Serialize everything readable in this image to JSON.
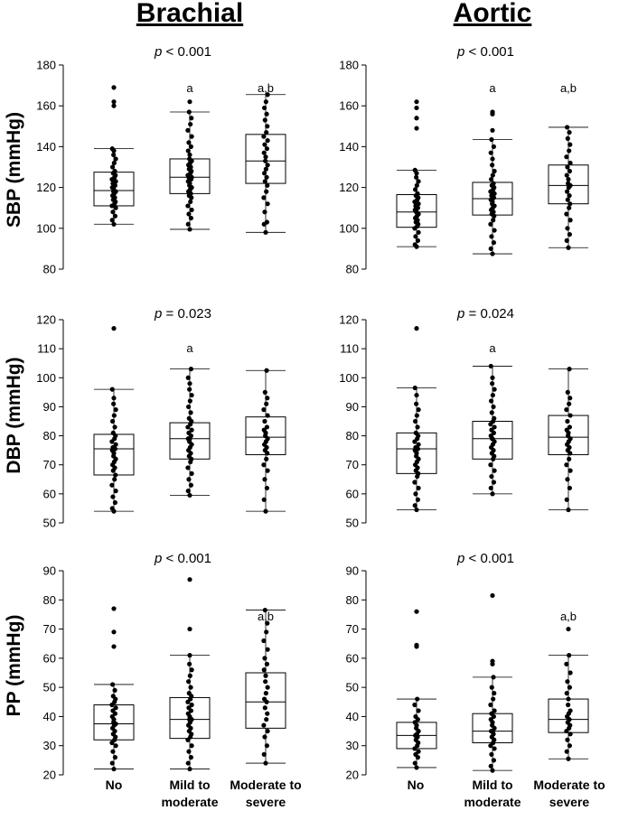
{
  "column_titles": [
    "Brachial",
    "Aortic"
  ],
  "row_labels": [
    "SBP (mmHg)",
    "DBP (mmHg)",
    "PP (mmHg)"
  ],
  "categories": [
    [
      "No"
    ],
    [
      "Mild to",
      "moderate"
    ],
    [
      "Moderate to",
      "severe"
    ]
  ],
  "chart_data": [
    {
      "type": "box",
      "id": "brachial-sbp",
      "title": "Brachial",
      "ylabel": "SBP (mmHg)",
      "p_prefix": "p",
      "p_text": " < 0.001",
      "ylim": [
        80,
        180
      ],
      "yticks": [
        80,
        100,
        120,
        140,
        160,
        180
      ],
      "groups": [
        {
          "name": "No",
          "min": 102,
          "q1": 111,
          "median": 118.5,
          "q3": 127.5,
          "max": 139,
          "sig": "",
          "outliers": [
            169,
            162,
            160
          ],
          "points": [
            102,
            104,
            106,
            108,
            110,
            111,
            112,
            113,
            114,
            115,
            116,
            117,
            118,
            118,
            119,
            120,
            121,
            122,
            123,
            124,
            125,
            126,
            127,
            128,
            130,
            132,
            134,
            136,
            138,
            139
          ]
        },
        {
          "name": "Mild to moderate",
          "min": 99.5,
          "q1": 117,
          "median": 125,
          "q3": 134,
          "max": 157,
          "sig": "a",
          "outliers": [
            162
          ],
          "points": [
            99.5,
            102,
            105,
            107,
            109,
            111,
            113,
            115,
            116,
            117,
            118,
            119,
            120,
            121,
            122,
            123,
            124,
            125,
            125,
            126,
            127,
            128,
            129,
            130,
            131,
            132,
            133,
            134,
            136,
            138,
            140,
            142,
            145,
            148,
            151,
            154,
            157
          ]
        },
        {
          "name": "Moderate to severe",
          "min": 98,
          "q1": 122,
          "median": 133,
          "q3": 146,
          "max": 165.5,
          "sig": "a,b",
          "outliers": [],
          "points": [
            98,
            102,
            103,
            108,
            112,
            115,
            118,
            121,
            123,
            125,
            127,
            129,
            131,
            133,
            135,
            137,
            139,
            141,
            143,
            145,
            147,
            150,
            153,
            156,
            159,
            162,
            165.5
          ]
        }
      ]
    },
    {
      "type": "box",
      "id": "aortic-sbp",
      "title": "Aortic",
      "ylabel": "SBP (mmHg)",
      "p_prefix": "p",
      "p_text": " < 0.001",
      "ylim": [
        80,
        180
      ],
      "yticks": [
        80,
        100,
        120,
        140,
        160,
        180
      ],
      "groups": [
        {
          "name": "No",
          "min": 91,
          "q1": 100.5,
          "median": 108,
          "q3": 116.5,
          "max": 128.5,
          "sig": "",
          "outliers": [
            162,
            159,
            154,
            149
          ],
          "points": [
            91,
            92,
            94,
            96,
            98,
            100,
            101,
            102,
            103,
            104,
            105,
            106,
            107,
            108,
            108,
            109,
            110,
            111,
            112,
            113,
            114,
            115,
            116,
            117,
            119,
            121,
            123,
            125,
            127,
            128.5
          ]
        },
        {
          "name": "Mild to moderate",
          "min": 87.5,
          "q1": 106.5,
          "median": 114.5,
          "q3": 122.5,
          "max": 143.5,
          "sig": "a",
          "outliers": [
            157,
            156,
            148
          ],
          "points": [
            87.5,
            90,
            93,
            96,
            99,
            102,
            104,
            106,
            107,
            108,
            109,
            110,
            111,
            112,
            113,
            114,
            115,
            116,
            117,
            118,
            119,
            120,
            121,
            122,
            124,
            126,
            128,
            131,
            134,
            137,
            140,
            143.5
          ]
        },
        {
          "name": "Moderate to severe",
          "min": 90.5,
          "q1": 112,
          "median": 121,
          "q3": 131,
          "max": 149.5,
          "sig": "a,b",
          "outliers": [],
          "points": [
            90.5,
            94,
            97,
            100,
            104,
            107,
            110,
            112,
            114,
            116,
            118,
            120,
            121,
            122,
            124,
            126,
            128,
            130,
            132,
            135,
            138,
            141,
            144,
            147,
            149.5
          ]
        }
      ]
    },
    {
      "type": "box",
      "id": "brachial-dbp",
      "title": "Brachial",
      "ylabel": "DBP (mmHg)",
      "p_prefix": "p",
      "p_text": " = 0.023",
      "ylim": [
        50,
        120
      ],
      "yticks": [
        50,
        60,
        70,
        80,
        90,
        100,
        110,
        120
      ],
      "groups": [
        {
          "name": "No",
          "min": 54,
          "q1": 66.5,
          "median": 75.5,
          "q3": 80.5,
          "max": 96,
          "sig": "",
          "outliers": [
            117
          ],
          "points": [
            54,
            55,
            57,
            59,
            61,
            63,
            65,
            66.5,
            68,
            69,
            70,
            71,
            72,
            73,
            74,
            75,
            75.5,
            76,
            77,
            78,
            79,
            80,
            81,
            83,
            85,
            87,
            89,
            91,
            93,
            96
          ]
        },
        {
          "name": "Mild to moderate",
          "min": 59.5,
          "q1": 72,
          "median": 79,
          "q3": 84.5,
          "max": 103,
          "sig": "a",
          "outliers": [],
          "points": [
            59.5,
            61,
            63,
            65,
            67,
            69,
            71,
            72,
            73,
            74,
            75,
            76,
            77,
            78,
            79,
            79,
            80,
            81,
            82,
            83,
            84,
            85,
            86,
            88,
            90,
            92,
            94,
            96,
            98,
            100,
            103
          ]
        },
        {
          "name": "Moderate to severe",
          "min": 54,
          "q1": 73.5,
          "median": 79.5,
          "q3": 86.5,
          "max": 102.5,
          "sig": "",
          "outliers": [],
          "points": [
            54,
            58,
            62,
            65,
            68,
            70,
            72,
            74,
            75,
            76,
            77,
            78,
            79,
            80,
            81,
            82,
            83,
            85,
            87,
            89,
            91,
            93,
            95,
            102.5
          ]
        }
      ]
    },
    {
      "type": "box",
      "id": "aortic-dbp",
      "title": "Aortic",
      "ylabel": "DBP (mmHg)",
      "p_prefix": "p",
      "p_text": " = 0.024",
      "ylim": [
        50,
        120
      ],
      "yticks": [
        50,
        60,
        70,
        80,
        90,
        100,
        110,
        120
      ],
      "groups": [
        {
          "name": "No",
          "min": 54.5,
          "q1": 67,
          "median": 75.5,
          "q3": 81,
          "max": 96.5,
          "sig": "",
          "outliers": [
            117
          ],
          "points": [
            54.5,
            56,
            58,
            60,
            62,
            64,
            66,
            67,
            68,
            69,
            70,
            71,
            72,
            73,
            74,
            75,
            75.5,
            76,
            77,
            78,
            79,
            80,
            81,
            83,
            85,
            87,
            89,
            91,
            94,
            96.5
          ]
        },
        {
          "name": "Mild to moderate",
          "min": 60,
          "q1": 72,
          "median": 79,
          "q3": 85,
          "max": 104,
          "sig": "a",
          "outliers": [],
          "points": [
            60,
            62,
            64,
            66,
            68,
            70,
            72,
            73,
            74,
            75,
            76,
            77,
            78,
            79,
            79,
            80,
            81,
            82,
            83,
            84,
            85,
            86,
            88,
            90,
            92,
            94,
            96,
            98,
            100,
            104
          ]
        },
        {
          "name": "Moderate to severe",
          "min": 54.5,
          "q1": 73.5,
          "median": 79.5,
          "q3": 87,
          "max": 103,
          "sig": "",
          "outliers": [],
          "points": [
            54.5,
            58,
            62,
            65,
            68,
            70,
            72,
            74,
            75,
            76,
            77,
            78,
            79,
            80,
            81,
            82,
            83,
            85,
            87,
            89,
            91,
            93,
            95,
            103
          ]
        }
      ]
    },
    {
      "type": "box",
      "id": "brachial-pp",
      "title": "Brachial",
      "ylabel": "PP (mmHg)",
      "p_prefix": "p",
      "p_text": " < 0.001",
      "ylim": [
        20,
        90
      ],
      "yticks": [
        20,
        30,
        40,
        50,
        60,
        70,
        80,
        90
      ],
      "groups": [
        {
          "name": "No",
          "min": 22,
          "q1": 32,
          "median": 37.5,
          "q3": 44,
          "max": 51,
          "sig": "",
          "outliers": [
            77,
            69,
            64
          ],
          "points": [
            22,
            24,
            26,
            28,
            30,
            31,
            32,
            33,
            34,
            35,
            36,
            37,
            37.5,
            38,
            39,
            40,
            41,
            42,
            43,
            44,
            45,
            46,
            47,
            49,
            51
          ]
        },
        {
          "name": "Mild to moderate",
          "min": 22,
          "q1": 32.5,
          "median": 39,
          "q3": 46.5,
          "max": 61,
          "sig": "",
          "outliers": [
            87,
            70
          ],
          "points": [
            22,
            24,
            26,
            28,
            30,
            32,
            33,
            34,
            35,
            36,
            37,
            38,
            39,
            39,
            40,
            41,
            42,
            43,
            44,
            45,
            46,
            47,
            48,
            50,
            52,
            54,
            56,
            58,
            61
          ]
        },
        {
          "name": "Moderate to severe",
          "min": 24,
          "q1": 36,
          "median": 45,
          "q3": 55,
          "max": 76.5,
          "sig": "a,b",
          "outliers": [],
          "points": [
            24,
            27,
            30,
            33,
            35,
            37,
            39,
            41,
            43,
            45,
            46,
            48,
            50,
            52,
            54,
            56,
            58,
            60,
            63,
            66,
            69,
            72,
            76.5
          ]
        }
      ]
    },
    {
      "type": "box",
      "id": "aortic-pp",
      "title": "Aortic",
      "ylabel": "PP (mmHg)",
      "p_prefix": "p",
      "p_text": " < 0.001",
      "ylim": [
        20,
        90
      ],
      "yticks": [
        20,
        30,
        40,
        50,
        60,
        70,
        80,
        90
      ],
      "groups": [
        {
          "name": "No",
          "min": 22.5,
          "q1": 29,
          "median": 33.5,
          "q3": 38,
          "max": 46,
          "sig": "",
          "outliers": [
            76,
            64.5,
            64
          ],
          "points": [
            22.5,
            24,
            26,
            27,
            28,
            29,
            30,
            31,
            32,
            33,
            33.5,
            34,
            35,
            36,
            37,
            38,
            39,
            40,
            42,
            44,
            46
          ]
        },
        {
          "name": "Mild to moderate",
          "min": 21.5,
          "q1": 31,
          "median": 35,
          "q3": 41,
          "max": 53.5,
          "sig": "",
          "outliers": [
            81.5,
            59,
            58
          ],
          "points": [
            21.5,
            23,
            25,
            27,
            29,
            30,
            31,
            32,
            33,
            34,
            35,
            35,
            36,
            37,
            38,
            39,
            40,
            41,
            42,
            44,
            46,
            48,
            50,
            53.5
          ]
        },
        {
          "name": "Moderate to severe",
          "min": 25.5,
          "q1": 34.5,
          "median": 39,
          "q3": 46,
          "max": 61,
          "sig": "a,b",
          "outliers": [
            70
          ],
          "points": [
            25.5,
            28,
            30,
            32,
            34,
            35,
            36,
            37,
            38,
            39,
            40,
            41,
            42,
            44,
            46,
            48,
            50,
            52,
            55,
            58,
            61
          ]
        }
      ]
    }
  ]
}
